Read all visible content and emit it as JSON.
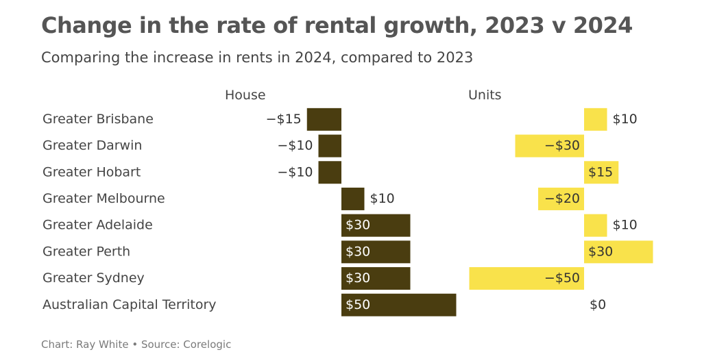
{
  "title": "Change in the rate of rental growth, 2023 v 2024",
  "subtitle": "Comparing the increase in rents in 2024, compared to 2023",
  "footer": "Chart: Ray White • Source: Corelogic",
  "chart_data": {
    "type": "bar",
    "orientation": "horizontal",
    "categories": [
      "Greater Brisbane",
      "Greater Darwin",
      "Greater Hobart",
      "Greater Melbourne",
      "Greater Adelaide",
      "Greater Perth",
      "Greater Sydney",
      "Australian Capital Territory"
    ],
    "series": [
      {
        "name": "House",
        "color": "#4a3d10",
        "values": [
          -15,
          -10,
          -10,
          10,
          30,
          30,
          30,
          50
        ],
        "labels": [
          "−$15",
          "−$10",
          "−$10",
          "$10",
          "$30",
          "$30",
          "$30",
          "$50"
        ]
      },
      {
        "name": "Units",
        "color": "#f9e24b",
        "values": [
          10,
          -30,
          15,
          -20,
          10,
          30,
          -50,
          0
        ],
        "labels": [
          "$10",
          "−$30",
          "$15",
          "−$20",
          "$10",
          "$30",
          "−$50",
          "$0"
        ]
      }
    ]
  }
}
